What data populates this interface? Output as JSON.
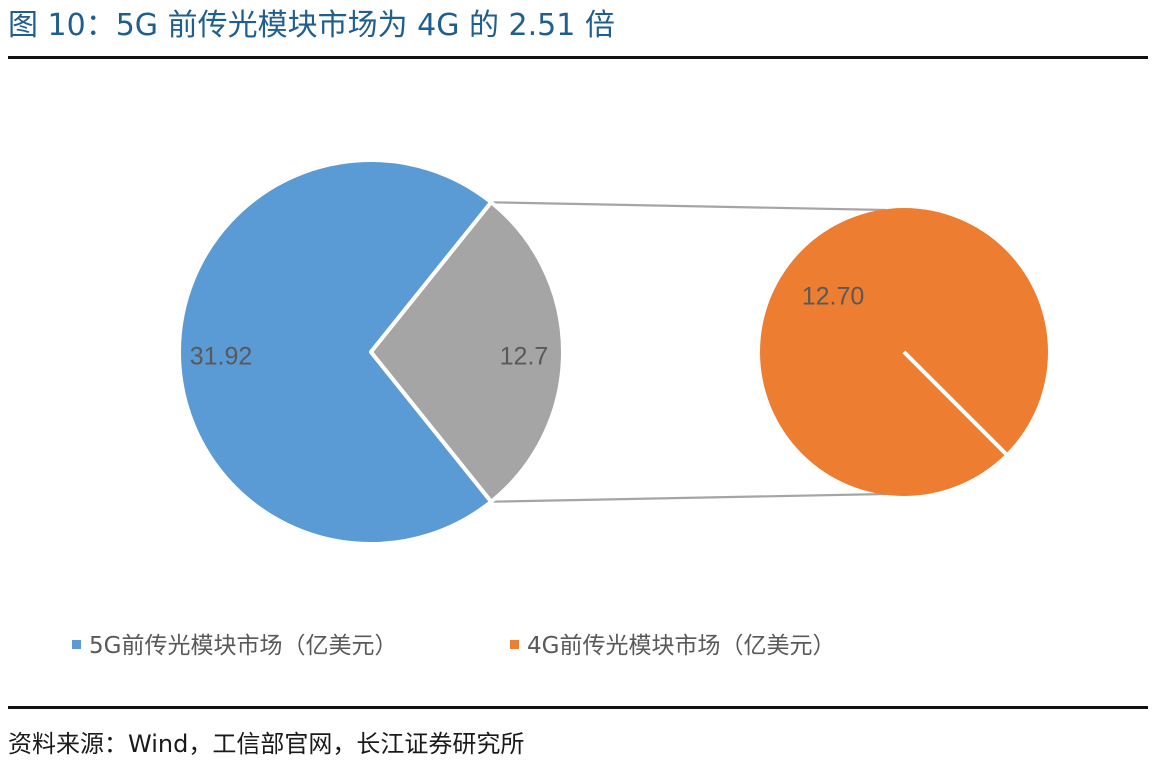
{
  "figure": {
    "title": "图 10：5G 前传光模块市场为 4G 的 2.51 倍",
    "source": "资料来源：Wind，工信部官网，长江证券研究所"
  },
  "colors": {
    "title": "#1f5f8f",
    "series_5g": "#5b9bd5",
    "series_4g_detail": "#a5a5a5",
    "series_4g": "#ed7d31",
    "connector": "#a5a5a5",
    "label_text": "#595959"
  },
  "chart_data": {
    "type": "pie",
    "subtype": "pie-of-pie",
    "main_pie": {
      "slices": [
        {
          "name": "5G前传光模块市场（亿美元）",
          "value": 31.92,
          "label": "31.92"
        },
        {
          "name": "4G前传光模块市场（亿美元）",
          "value": 12.7,
          "label": "12.7"
        }
      ]
    },
    "secondary_pie": {
      "slices": [
        {
          "name": "4G前传光模块市场（亿美元）",
          "value": 12.7,
          "label": "12.70"
        }
      ]
    },
    "legend": {
      "placement": "bottom",
      "entries": [
        {
          "label": "5G前传光模块市场（亿美元）",
          "color": "#5b9bd5"
        },
        {
          "label": "4G前传光模块市场（亿美元）",
          "color": "#ed7d31"
        }
      ]
    }
  }
}
